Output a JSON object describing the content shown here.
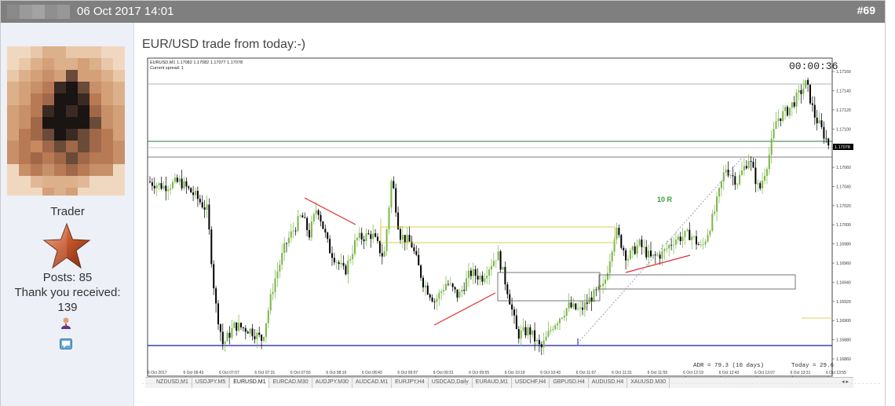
{
  "header": {
    "date": "06 Oct 2017 14:01",
    "post_number": "#69"
  },
  "user": {
    "rank": "Trader",
    "posts_label": "Posts: 85",
    "thanks_label": "Thank you received:",
    "thanks_count": "139"
  },
  "post": {
    "text": "EUR/USD trade from today:-)"
  },
  "chart": {
    "info_line1": "EURUSD,M1  1.17082 1.17082 1.17077 1.17078",
    "info_line2": "Current spread: 1",
    "timer": "00:00:36",
    "annotation": "10 R",
    "adr": "ADR = 79.3  (10 days)",
    "today": "Today = 29.6",
    "price_marker": "1.17078",
    "y_ticks": [
      "1.17160",
      "1.17140",
      "1.17120",
      "1.17100",
      "1.17080",
      "1.17060",
      "1.17040",
      "1.17020",
      "1.17000",
      "1.16980",
      "1.16960",
      "1.16940",
      "1.16920",
      "1.16900",
      "1.16880",
      "1.16860"
    ],
    "x_ticks": [
      "6 Oct 2017",
      "6 Oct 06:43",
      "6 Oct 07:07",
      "6 Oct 07:31",
      "6 Oct 07:55",
      "6 Oct 08:19",
      "6 Oct 08:43",
      "6 Oct 09:07",
      "6 Oct 09:31",
      "6 Oct 09:55",
      "6 Oct 10:19",
      "6 Oct 10:43",
      "6 Oct 11:07",
      "6 Oct 11:31",
      "6 Oct 11:55",
      "6 Oct 12:19",
      "6 Oct 12:43",
      "6 Oct 13:07",
      "6 Oct 13:31",
      "6 Oct 13:55"
    ]
  },
  "tabs": [
    "NZDUSD,M1",
    "USDJPY,M5",
    "EURUSD,M1",
    "EURCAD,M30",
    "AUDJPY,M30",
    "AUDCAD,M1",
    "EURJPY,H4",
    "USDCAD,Daily",
    "EURAUD,M1",
    "USDCHF,H4",
    "GBPUSD,H4",
    "AUDUSD,H4",
    "XAUUSD,M30"
  ],
  "active_tab": "EURUSD,M1",
  "colors": {
    "header_bg": "#7f7f7f",
    "panel_bg": "#eef0f7",
    "bull_candle": "#7ab648",
    "bear_candle": "#000000",
    "green_line": "#2e7d32",
    "blue_line": "#1a1aaa",
    "red_line": "#e03030",
    "annotation": "#3a9a3a"
  },
  "icons": [
    "user-profile-icon",
    "private-message-icon",
    "rank-star-icon"
  ]
}
